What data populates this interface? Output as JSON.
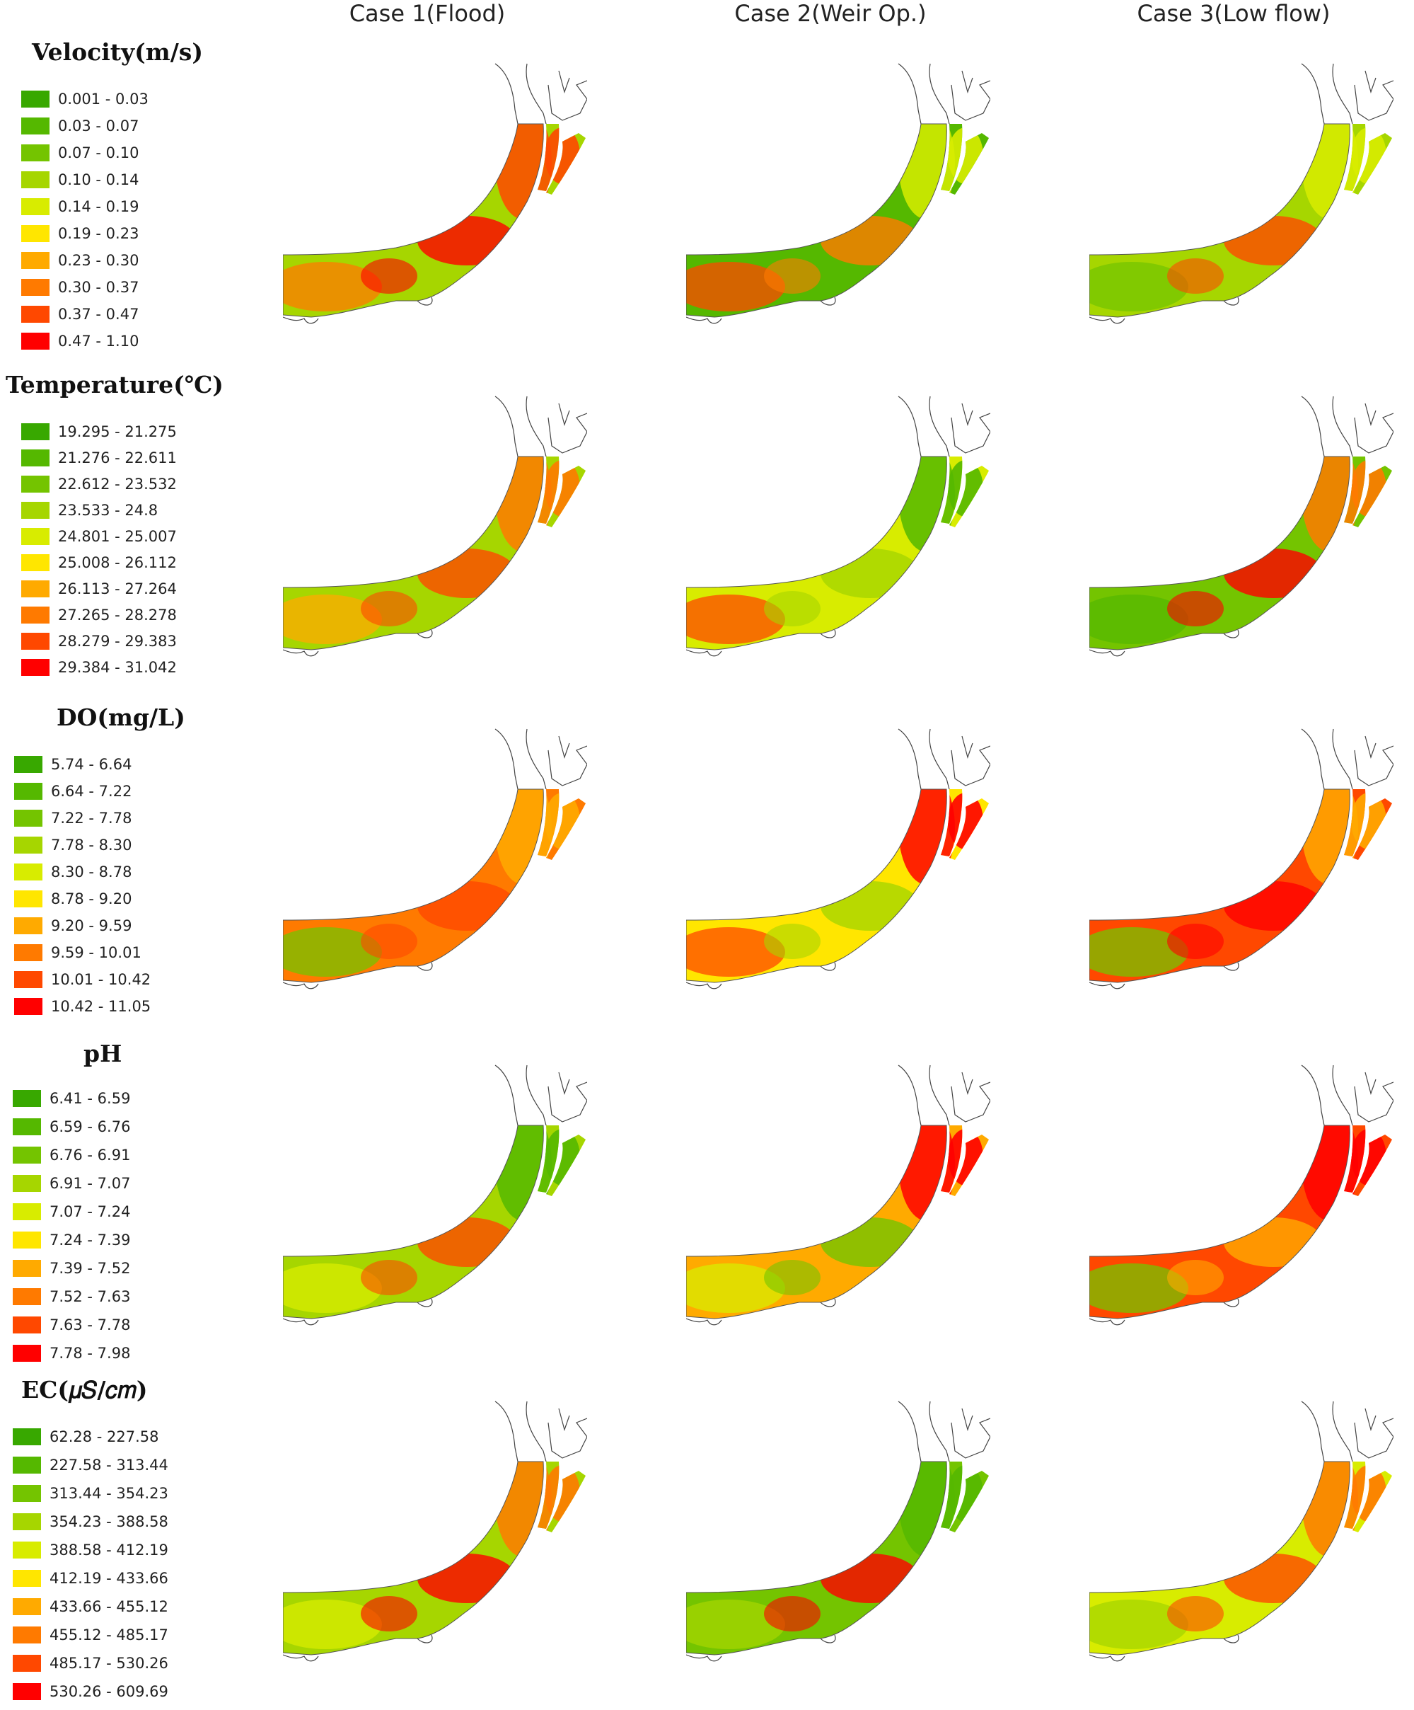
{
  "columns": [
    "Case 1(Flood)",
    "Case 2(Weir Op.)",
    "Case 3(Low flow)"
  ],
  "colors": [
    "#38a800",
    "#55b800",
    "#74c400",
    "#a6d600",
    "#d8ec00",
    "#ffe600",
    "#ffaa00",
    "#ff7a00",
    "#ff4800",
    "#ff0000"
  ],
  "rows": [
    {
      "title": "Velocity(m/s)",
      "ranges": [
        "0.001 - 0.03",
        "0.03 - 0.07",
        "0.07 - 0.10",
        "0.10 - 0.14",
        "0.14 - 0.19",
        "0.19 - 0.23",
        "0.23 - 0.30",
        "0.30 - 0.37",
        "0.37 - 0.47",
        "0.47 - 1.10"
      ],
      "maps": [
        {
          "base": 3,
          "accents": [
            8,
            9,
            7
          ]
        },
        {
          "base": 1,
          "accents": [
            4,
            7,
            8
          ]
        },
        {
          "base": 3,
          "accents": [
            4,
            8,
            2
          ]
        }
      ]
    },
    {
      "title": "Temperature(℃)",
      "ranges": [
        "19.295 - 21.275",
        "21.276 - 22.611",
        "22.612 - 23.532",
        "23.533 - 24.8",
        "24.801 - 25.007",
        "25.008 - 26.112",
        "26.113 - 27.264",
        "27.265 - 28.278",
        "28.279 - 29.383",
        "29.384 - 31.042"
      ],
      "maps": [
        {
          "base": 3,
          "accents": [
            7,
            8,
            6
          ]
        },
        {
          "base": 4,
          "accents": [
            1,
            3,
            8
          ]
        },
        {
          "base": 2,
          "accents": [
            7,
            9,
            1
          ]
        }
      ]
    },
    {
      "title": "DO(mg/L)",
      "ranges": [
        "5.74 - 6.64",
        "6.64 - 7.22",
        "7.22 - 7.78",
        "7.78 - 8.30",
        "8.30 - 8.78",
        "8.78 - 9.20",
        "9.20 - 9.59",
        "9.59 - 10.01",
        "10.01 - 10.42",
        "10.42 - 11.05"
      ],
      "maps": [
        {
          "base": 7,
          "accents": [
            6,
            8,
            2
          ]
        },
        {
          "base": 5,
          "accents": [
            9,
            3,
            8
          ]
        },
        {
          "base": 8,
          "accents": [
            6,
            9,
            2
          ]
        }
      ]
    },
    {
      "title": "pH",
      "ranges": [
        "6.41 - 6.59",
        "6.59 - 6.76",
        "6.76 - 6.91",
        "6.91 - 7.07",
        "7.07 - 7.24",
        "7.24 - 7.39",
        "7.39 - 7.52",
        "7.52 - 7.63",
        "7.63 - 7.78",
        "7.78 - 7.98"
      ],
      "maps": [
        {
          "base": 3,
          "accents": [
            1,
            8,
            4
          ]
        },
        {
          "base": 6,
          "accents": [
            9,
            2,
            4
          ]
        },
        {
          "base": 8,
          "accents": [
            9,
            6,
            2
          ]
        }
      ]
    },
    {
      "title": "EC(𝜇𝑆/𝑐𝑚)",
      "ranges": [
        "62.28 - 227.58",
        "227.58 - 313.44",
        "313.44 - 354.23",
        "354.23 - 388.58",
        "388.58 - 412.19",
        "412.19 - 433.66",
        "433.66 - 455.12",
        "455.12 - 485.17",
        "485.17 - 530.26",
        "530.26 - 609.69"
      ],
      "maps": [
        {
          "base": 3,
          "accents": [
            7,
            9,
            4
          ]
        },
        {
          "base": 2,
          "accents": [
            1,
            9,
            3
          ]
        },
        {
          "base": 4,
          "accents": [
            7,
            8,
            3
          ]
        }
      ]
    }
  ]
}
